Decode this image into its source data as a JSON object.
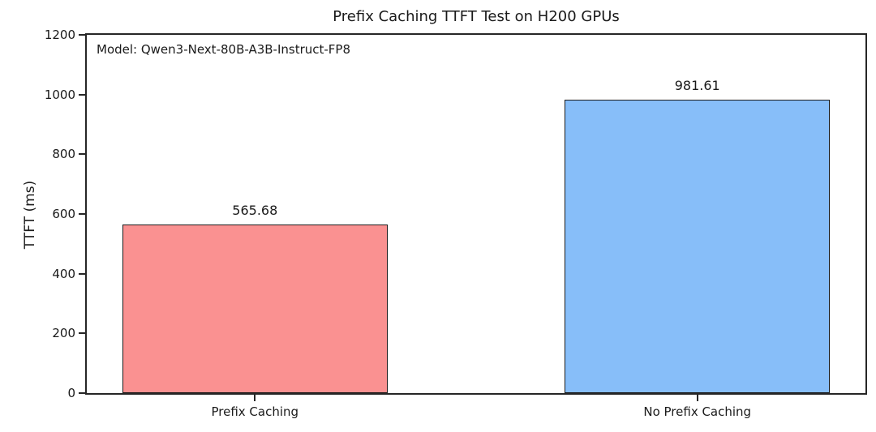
{
  "chart_data": {
    "type": "bar",
    "title": "Prefix Caching TTFT Test on H200 GPUs",
    "annotation": "Model: Qwen3-Next-80B-A3B-Instruct-FP8",
    "ylabel": "TTFT (ms)",
    "xlabel": "",
    "categories": [
      "Prefix Caching",
      "No Prefix Caching"
    ],
    "values": [
      565.68,
      981.61
    ],
    "value_labels": [
      "565.68",
      "981.61"
    ],
    "bar_colors": [
      "#fa9191",
      "#87bef9"
    ],
    "bar_edge_color": "#1a1a1a",
    "ylim": [
      0,
      1200
    ],
    "yticks": [
      0,
      200,
      400,
      600,
      800,
      1000,
      1200
    ],
    "grid": false,
    "legend_position": "none",
    "background_color": "#ffffff"
  }
}
